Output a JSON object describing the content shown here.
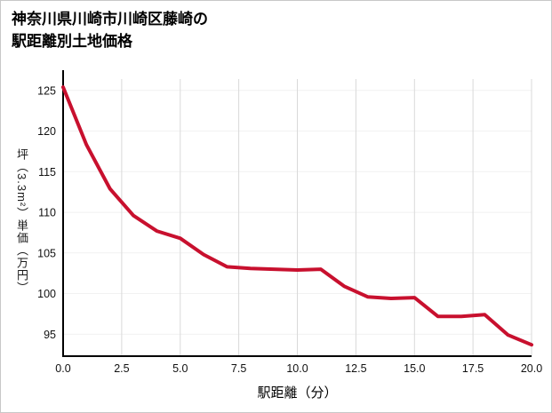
{
  "title": {
    "line1": "神奈川県川崎市川崎区藤崎の",
    "line2": "駅距離別土地価格"
  },
  "chart_data": {
    "type": "line",
    "title": "神奈川県川崎市川崎区藤崎の駅距離別土地価格",
    "xlabel": "駅距離（分）",
    "ylabel": "坪（3.3m²）単価（万円）",
    "x": [
      0,
      1,
      2,
      3,
      4,
      5,
      6,
      7,
      8,
      9,
      10,
      11,
      12,
      13,
      14,
      15,
      16,
      17,
      18,
      19,
      20
    ],
    "y": [
      125.4,
      118.3,
      112.9,
      109.6,
      107.7,
      106.8,
      104.8,
      103.3,
      103.1,
      103.0,
      102.9,
      103.0,
      100.9,
      99.6,
      99.4,
      99.5,
      97.2,
      97.2,
      97.4,
      94.9,
      93.7
    ],
    "xlim": [
      0,
      20
    ],
    "ylim": [
      92.3,
      126.4
    ],
    "x_tick_labels": [
      "0.0",
      "2.5",
      "5.0",
      "7.5",
      "10.0",
      "12.5",
      "15.0",
      "17.5",
      "20.0"
    ],
    "y_tick_labels": [
      "95",
      "100",
      "105",
      "110",
      "115",
      "120",
      "125"
    ],
    "line_color": "#c8102e",
    "v_grid_color": "#d9d9d9",
    "h_grid_color": "#f1f1f1",
    "axis_color": "#000000",
    "tick_text_color": "#111111",
    "legend": "none",
    "grid": "light vertical gridlines at each x tick, very light horizontal gridlines at each y tick"
  }
}
